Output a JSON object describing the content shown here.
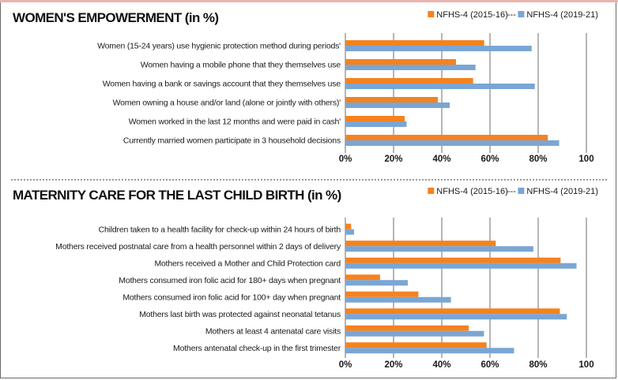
{
  "chart_data": [
    {
      "type": "bar",
      "orientation": "horizontal",
      "title": "WOMEN'S EMPOWERMENT (in %)",
      "legend": "top-right",
      "legend_separator": "---",
      "grid": true,
      "xlim": [
        0,
        100
      ],
      "ticks": [
        "0%",
        "20%",
        "40%",
        "60%",
        "80%",
        "100"
      ],
      "categories": [
        "Women (15-24 years) use hygienic protection method during periods'",
        "Women having a mobile phone that they themselves use",
        "Women having a bank or savings account that they themselves use",
        "Women owning a house and/or land (alone or jointly with others)'",
        "Women worked in the last 12 months and were paid in cash'",
        "Currently married women participate in 3 household decisions"
      ],
      "series": [
        {
          "name": "NFHS-4 (2015-16)",
          "color": "#f5821f",
          "values": [
            57.6,
            45.9,
            53.0,
            38.4,
            24.6,
            84.0
          ]
        },
        {
          "name": "NFHS-4 (2019-21)",
          "color": "#7aa6d4",
          "values": [
            77.3,
            54.0,
            78.6,
            43.3,
            25.4,
            88.7
          ]
        }
      ]
    },
    {
      "type": "bar",
      "orientation": "horizontal",
      "title": "MATERNITY CARE FOR THE LAST CHILD BIRTH (in %)",
      "legend": "top-right",
      "legend_separator": "---",
      "grid": true,
      "xlim": [
        0,
        100
      ],
      "ticks": [
        "0%",
        "20%",
        "40%",
        "60%",
        "80%",
        "100"
      ],
      "categories": [
        "Children taken to a health facility for check-up within 24 hours of birth",
        "Mothers received postnatal care from a health personnel within 2 days of delivery",
        "Mothers received a Mother and Child Protection card",
        "Mothers consumed iron folic acid for 180+ days when pregnant",
        "Mothers consumed iron folic acid for 100+ day when pregnant",
        "Mothers last birth was protected against neonatal tetanus",
        "Mothers at least 4 antenatal care visits",
        "Mothers antenatal check-up in the first trimester"
      ],
      "series": [
        {
          "name": "NFHS-4 (2015-16)",
          "color": "#f5821f",
          "values": [
            2.4,
            62.4,
            89.3,
            14.4,
            30.3,
            89.0,
            51.2,
            58.6
          ]
        },
        {
          "name": "NFHS-4 (2019-21)",
          "color": "#7aa6d4",
          "values": [
            3.6,
            78.0,
            95.9,
            25.9,
            43.8,
            91.9,
            57.5,
            70.0
          ]
        }
      ]
    }
  ]
}
